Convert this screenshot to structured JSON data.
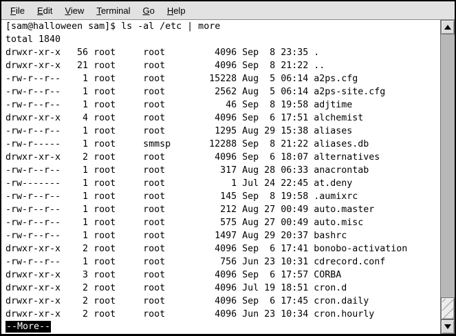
{
  "menubar": {
    "items": [
      {
        "mn": "F",
        "rest": "ile"
      },
      {
        "mn": "E",
        "rest": "dit"
      },
      {
        "mn": "V",
        "rest": "iew"
      },
      {
        "mn": "T",
        "rest": "erminal"
      },
      {
        "mn": "G",
        "rest": "o"
      },
      {
        "mn": "H",
        "rest": "elp"
      }
    ]
  },
  "terminal": {
    "prompt": "[sam@halloween sam]$",
    "command": "ls -al /etc | more",
    "total_line": "total 1840",
    "more_prompt": "--More--",
    "files": [
      {
        "perms": "drwxr-xr-x",
        "links": 56,
        "owner": "root",
        "group": "root",
        "size": 4096,
        "date": "Sep  8 23:35",
        "name": "."
      },
      {
        "perms": "drwxr-xr-x",
        "links": 21,
        "owner": "root",
        "group": "root",
        "size": 4096,
        "date": "Sep  8 21:22",
        "name": ".."
      },
      {
        "perms": "-rw-r--r--",
        "links": 1,
        "owner": "root",
        "group": "root",
        "size": 15228,
        "date": "Aug  5 06:14",
        "name": "a2ps.cfg"
      },
      {
        "perms": "-rw-r--r--",
        "links": 1,
        "owner": "root",
        "group": "root",
        "size": 2562,
        "date": "Aug  5 06:14",
        "name": "a2ps-site.cfg"
      },
      {
        "perms": "-rw-r--r--",
        "links": 1,
        "owner": "root",
        "group": "root",
        "size": 46,
        "date": "Sep  8 19:58",
        "name": "adjtime"
      },
      {
        "perms": "drwxr-xr-x",
        "links": 4,
        "owner": "root",
        "group": "root",
        "size": 4096,
        "date": "Sep  6 17:51",
        "name": "alchemist"
      },
      {
        "perms": "-rw-r--r--",
        "links": 1,
        "owner": "root",
        "group": "root",
        "size": 1295,
        "date": "Aug 29 15:38",
        "name": "aliases"
      },
      {
        "perms": "-rw-r-----",
        "links": 1,
        "owner": "root",
        "group": "smmsp",
        "size": 12288,
        "date": "Sep  8 21:22",
        "name": "aliases.db"
      },
      {
        "perms": "drwxr-xr-x",
        "links": 2,
        "owner": "root",
        "group": "root",
        "size": 4096,
        "date": "Sep  6 18:07",
        "name": "alternatives"
      },
      {
        "perms": "-rw-r--r--",
        "links": 1,
        "owner": "root",
        "group": "root",
        "size": 317,
        "date": "Aug 28 06:33",
        "name": "anacrontab"
      },
      {
        "perms": "-rw-------",
        "links": 1,
        "owner": "root",
        "group": "root",
        "size": 1,
        "date": "Jul 24 22:45",
        "name": "at.deny"
      },
      {
        "perms": "-rw-r--r--",
        "links": 1,
        "owner": "root",
        "group": "root",
        "size": 145,
        "date": "Sep  8 19:58",
        "name": ".aumixrc"
      },
      {
        "perms": "-rw-r--r--",
        "links": 1,
        "owner": "root",
        "group": "root",
        "size": 212,
        "date": "Aug 27 00:49",
        "name": "auto.master"
      },
      {
        "perms": "-rw-r--r--",
        "links": 1,
        "owner": "root",
        "group": "root",
        "size": 575,
        "date": "Aug 27 00:49",
        "name": "auto.misc"
      },
      {
        "perms": "-rw-r--r--",
        "links": 1,
        "owner": "root",
        "group": "root",
        "size": 1497,
        "date": "Aug 29 20:37",
        "name": "bashrc"
      },
      {
        "perms": "drwxr-xr-x",
        "links": 2,
        "owner": "root",
        "group": "root",
        "size": 4096,
        "date": "Sep  6 17:41",
        "name": "bonobo-activation"
      },
      {
        "perms": "-rw-r--r--",
        "links": 1,
        "owner": "root",
        "group": "root",
        "size": 756,
        "date": "Jun 23 10:31",
        "name": "cdrecord.conf"
      },
      {
        "perms": "drwxr-xr-x",
        "links": 3,
        "owner": "root",
        "group": "root",
        "size": 4096,
        "date": "Sep  6 17:57",
        "name": "CORBA"
      },
      {
        "perms": "drwxr-xr-x",
        "links": 2,
        "owner": "root",
        "group": "root",
        "size": 4096,
        "date": "Jul 19 18:51",
        "name": "cron.d"
      },
      {
        "perms": "drwxr-xr-x",
        "links": 2,
        "owner": "root",
        "group": "root",
        "size": 4096,
        "date": "Sep  6 17:45",
        "name": "cron.daily"
      },
      {
        "perms": "drwxr-xr-x",
        "links": 2,
        "owner": "root",
        "group": "root",
        "size": 4096,
        "date": "Jun 23 10:34",
        "name": "cron.hourly"
      }
    ]
  },
  "colors": {
    "terminal_bg": "#ffffff",
    "terminal_fg": "#000000",
    "more_bg": "#000000",
    "more_fg": "#ffffff",
    "chrome": "#e2e2e2",
    "scrollbar_trough": "#b8b8b8",
    "window_border": "#000000"
  },
  "icons": {
    "scroll_up": "up-triangle",
    "scroll_down": "down-triangle"
  }
}
